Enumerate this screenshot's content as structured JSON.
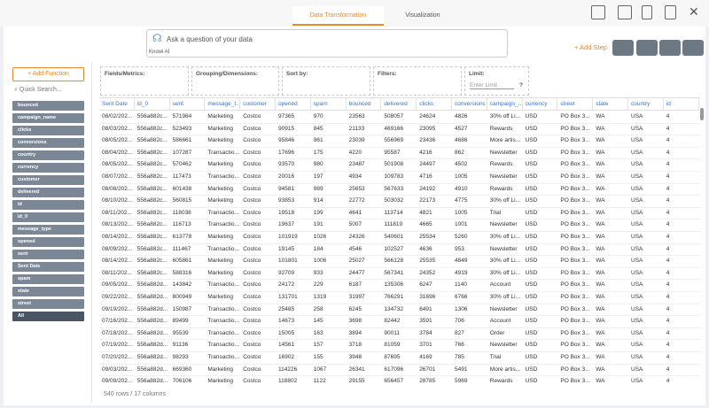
{
  "tabs": [
    "Data Transformation",
    "Visualization"
  ],
  "ask": {
    "placeholder": "Ask a question of your data",
    "model": "Knowi AI"
  },
  "add_step": "+ Add Step",
  "add_function": "+ Add Function",
  "quick_search": "Quick Search...",
  "fields": [
    "bounced",
    "campaign_name",
    "clicks",
    "conversions",
    "country",
    "currency",
    "customer",
    "delivered",
    "id",
    "id_0",
    "message_type",
    "opened",
    "sent",
    "Sent Date",
    "spam",
    "state",
    "street",
    "All"
  ],
  "panels": {
    "fields": "Fields/Metrics:",
    "grouping": "Grouping/Dimensions:",
    "sort": "Sort by:",
    "filters": "Filters:",
    "limit": "Limit:",
    "limit_placeholder": "Enter Limit"
  },
  "table": {
    "columns": [
      "Sent Date",
      "id_0",
      "sent",
      "message_t...",
      "customer",
      "opened",
      "spam",
      "bounced",
      "delivered",
      "clicks",
      "conversions",
      "campaign_...",
      "currency",
      "street",
      "state",
      "country",
      "id"
    ],
    "rows": [
      [
        "08/02/202...",
        "556a882c...",
        571984,
        "Marketing",
        "Costco",
        97365,
        970,
        23563,
        508057,
        24624,
        4826,
        "30% off Li...",
        "USD",
        "PO Box 3...",
        "WA",
        "USA",
        4
      ],
      [
        "08/03/202...",
        "556a882c...",
        523493,
        "Marketing",
        "Costco",
        90915,
        845,
        21133,
        469166,
        23095,
        4527,
        "Rewards",
        "USD",
        "PO Box 3...",
        "WA",
        "USA",
        4
      ],
      [
        "08/05/202...",
        "556a882c...",
        586661,
        "Marketing",
        "Costco",
        95846,
        961,
        23039,
        556969,
        23436,
        4686,
        "More artis...",
        "USD",
        "PO Box 3...",
        "WA",
        "USA",
        4
      ],
      [
        "08/04/202...",
        "556a882c...",
        107287,
        "Transactio...",
        "Costco",
        17696,
        175,
        4220,
        95587,
        4216,
        862,
        "Newsletter",
        "USD",
        "PO Box 3...",
        "WA",
        "USA",
        4
      ],
      [
        "08/05/202...",
        "556a882c...",
        570462,
        "Marketing",
        "Costco",
        93570,
        980,
        23487,
        501908,
        24497,
        4502,
        "Rewards",
        "USD",
        "PO Box 3...",
        "WA",
        "USA",
        4
      ],
      [
        "08/07/202...",
        "556a882c...",
        117473,
        "Transactio...",
        "Costco",
        20016,
        197,
        4934,
        109783,
        4716,
        1005,
        "Newsletter",
        "USD",
        "PO Box 3...",
        "WA",
        "USA",
        4
      ],
      [
        "08/08/202...",
        "556a882c...",
        601438,
        "Marketing",
        "Costco",
        94581,
        989,
        25653,
        567633,
        24192,
        4910,
        "Rewards",
        "USD",
        "PO Box 3...",
        "WA",
        "USA",
        4
      ],
      [
        "08/10/202...",
        "556a882c...",
        560815,
        "Marketing",
        "Costco",
        93853,
        914,
        22772,
        503032,
        22173,
        4775,
        "30% off Li...",
        "USD",
        "PO Box 3...",
        "WA",
        "USA",
        4
      ],
      [
        "08/11/202...",
        "556a882c...",
        118038,
        "Transactio...",
        "Costco",
        19518,
        199,
        4641,
        113714,
        4821,
        1005,
        "Trial",
        "USD",
        "PO Box 3...",
        "WA",
        "USA",
        4
      ],
      [
        "08/13/202...",
        "556a882c...",
        116713,
        "Transactio...",
        "Costco",
        19637,
        191,
        5007,
        111819,
        4665,
        1001,
        "Newsletter",
        "USD",
        "PO Box 3...",
        "WA",
        "USA",
        4
      ],
      [
        "08/14/202...",
        "556a882c...",
        613778,
        "Marketing",
        "Costco",
        101919,
        1026,
        24326,
        540601,
        25534,
        5260,
        "30% off Li...",
        "USD",
        "PO Box 3...",
        "WA",
        "USA",
        4
      ],
      [
        "08/09/202...",
        "556a882c...",
        111467,
        "Transactio...",
        "Costco",
        19145,
        184,
        4546,
        102527,
        4636,
        953,
        "Newsletter",
        "USD",
        "PO Box 3...",
        "WA",
        "USA",
        4
      ],
      [
        "08/14/202...",
        "556a882c...",
        605861,
        "Marketing",
        "Costco",
        101801,
        1006,
        25027,
        566128,
        25535,
        4849,
        "30% off Li...",
        "USD",
        "PO Box 3...",
        "WA",
        "USA",
        4
      ],
      [
        "08/11/202...",
        "556a882c...",
        588316,
        "Marketing",
        "Costco",
        92709,
        933,
        24477,
        567341,
        24352,
        4919,
        "30% off Li...",
        "USD",
        "PO Box 3...",
        "WA",
        "USA",
        4
      ],
      [
        "09/05/202...",
        "556a882d...",
        143842,
        "Transactio...",
        "Costco",
        24172,
        229,
        6187,
        135306,
        6247,
        1140,
        "Account",
        "USD",
        "PO Box 3...",
        "WA",
        "USA",
        4
      ],
      [
        "09/22/202...",
        "556a882d...",
        800949,
        "Marketing",
        "Costco",
        131701,
        1319,
        31997,
        766291,
        31696,
        6766,
        "30% off Li...",
        "USD",
        "PO Box 3...",
        "WA",
        "USA",
        4
      ],
      [
        "09/19/202...",
        "556a882d...",
        150987,
        "Transactio...",
        "Costco",
        25485,
        258,
        6245,
        134732,
        6491,
        1306,
        "Newsletter",
        "USD",
        "PO Box 3...",
        "WA",
        "USA",
        4
      ],
      [
        "07/16/202...",
        "556a882d...",
        89499,
        "Transactio...",
        "Costco",
        14673,
        145,
        3698,
        82442,
        3591,
        706,
        "Account",
        "USD",
        "PO Box 3...",
        "WA",
        "USA",
        4
      ],
      [
        "07/18/202...",
        "556a882d...",
        95539,
        "Transactio...",
        "Costco",
        15005,
        163,
        3894,
        90011,
        3784,
        827,
        "Order",
        "USD",
        "PO Box 3...",
        "WA",
        "USA",
        4
      ],
      [
        "07/19/202...",
        "556a882d...",
        91136,
        "Transactio...",
        "Costco",
        14561,
        157,
        3718,
        81059,
        3701,
        766,
        "Newsletter",
        "USD",
        "PO Box 3...",
        "WA",
        "USA",
        4
      ],
      [
        "07/20/202...",
        "556a882d...",
        98293,
        "Transactio...",
        "Costco",
        16902,
        155,
        3948,
        87695,
        4169,
        785,
        "Trial",
        "USD",
        "PO Box 3...",
        "WA",
        "USA",
        4
      ],
      [
        "09/03/202...",
        "556a882d...",
        669360,
        "Marketing",
        "Costco",
        114226,
        1067,
        26341,
        617096,
        26701,
        5491,
        "More artis...",
        "USD",
        "PO Box 3...",
        "WA",
        "USA",
        4
      ],
      [
        "09/09/202...",
        "556a882d...",
        706106,
        "Marketing",
        "Costco",
        118802,
        1122,
        29155,
        656457,
        28785,
        5969,
        "Rewards",
        "USD",
        "PO Box 3...",
        "WA",
        "USA",
        4
      ]
    ]
  },
  "footer": "540 rows / 17 columns"
}
